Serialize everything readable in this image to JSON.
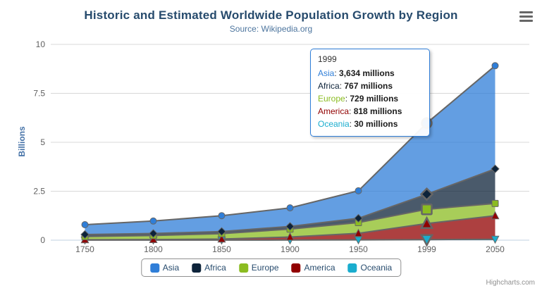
{
  "header": {
    "title": "Historic and Estimated Worldwide Population Growth by Region",
    "subtitle": "Source: Wikipedia.org"
  },
  "chart_data": {
    "type": "area",
    "stacking": "normal",
    "title": "Historic and Estimated Worldwide Population Growth by Region",
    "subtitle": "Source: Wikipedia.org",
    "categories": [
      "1750",
      "1800",
      "1850",
      "1900",
      "1950",
      "1999",
      "2050"
    ],
    "series": [
      {
        "name": "Asia",
        "color": "#2f7ed8",
        "marker": "circle",
        "values_millions": [
          502,
          635,
          809,
          947,
          1402,
          3634,
          5268
        ]
      },
      {
        "name": "Africa",
        "color": "#0d233a",
        "marker": "diamond",
        "values_millions": [
          106,
          107,
          111,
          133,
          221,
          767,
          1766
        ]
      },
      {
        "name": "Europe",
        "color": "#8bbc21",
        "marker": "square",
        "values_millions": [
          163,
          203,
          276,
          408,
          547,
          729,
          628
        ]
      },
      {
        "name": "America",
        "color": "#910000",
        "marker": "triangle",
        "values_millions": [
          18,
          31,
          54,
          156,
          339,
          818,
          1201
        ]
      },
      {
        "name": "Oceania",
        "color": "#1aadce",
        "marker": "triangle-down",
        "values_millions": [
          2,
          2,
          2,
          6,
          13,
          30,
          46
        ]
      }
    ],
    "stack_order_bottom_to_top": [
      "Oceania",
      "America",
      "Europe",
      "Africa",
      "Asia"
    ],
    "ylabel": "Billions",
    "yticks_billions": [
      "0",
      "2.5",
      "5",
      "7.5",
      "10"
    ],
    "ylim_billions": [
      0,
      10
    ],
    "value_unit": "millions",
    "hover_category": "1999",
    "line_color": "#666666",
    "fill_opacity": 0.75,
    "grid": true,
    "legend_position": "bottom-center"
  },
  "tooltip": {
    "header": "1999",
    "border_color": "#2f7ed8",
    "rows": [
      {
        "name": "Asia",
        "color": "#2f7ed8",
        "value": "3,634 millions"
      },
      {
        "name": "Africa",
        "color": "#0d233a",
        "value": "767 millions"
      },
      {
        "name": "Europe",
        "color": "#8bbc21",
        "value": "729 millions"
      },
      {
        "name": "America",
        "color": "#910000",
        "value": "818 millions"
      },
      {
        "name": "Oceania",
        "color": "#1aadce",
        "value": "30 millions"
      }
    ]
  },
  "legend": {
    "items": [
      {
        "label": "Asia",
        "color": "#2f7ed8"
      },
      {
        "label": "Africa",
        "color": "#0d233a"
      },
      {
        "label": "Europe",
        "color": "#8bbc21"
      },
      {
        "label": "America",
        "color": "#910000"
      },
      {
        "label": "Oceania",
        "color": "#1aadce"
      }
    ]
  },
  "credits": "Highcharts.com"
}
